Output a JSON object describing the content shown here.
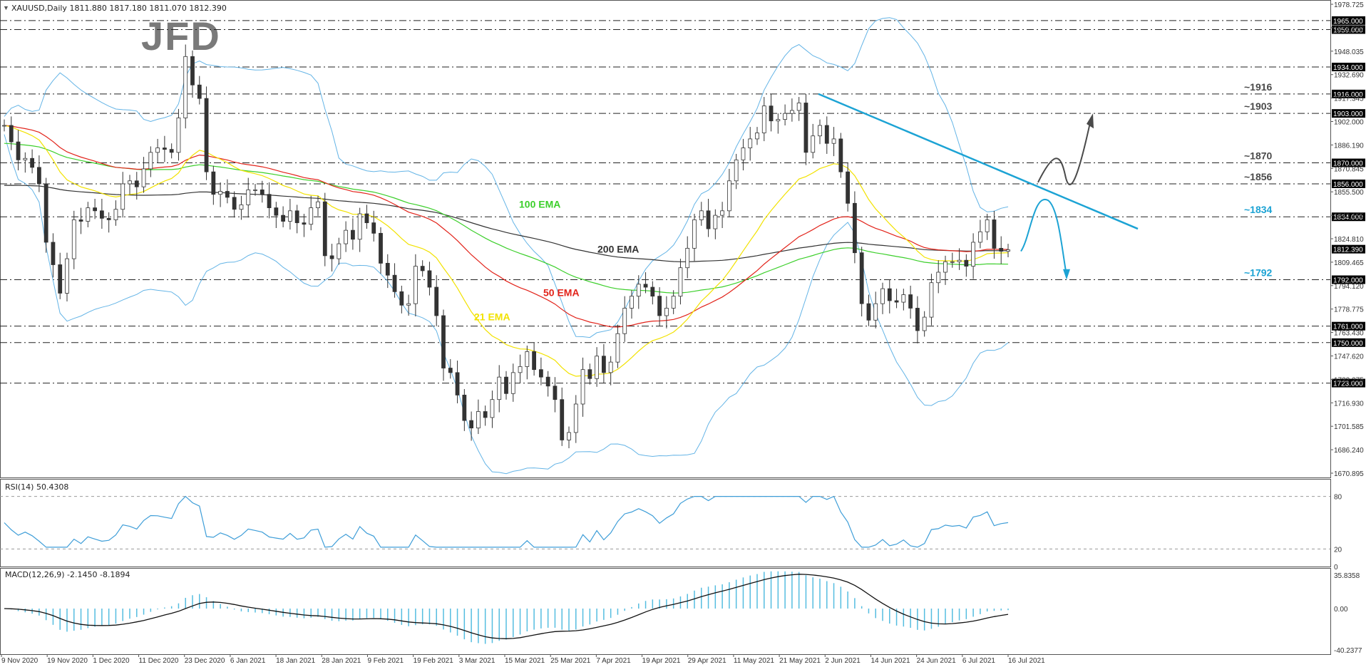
{
  "main_header": "XAUUSD,Daily  1811.880 1817.180 1811.070 1812.390",
  "rsi_header": "RSI(14) 50.4308",
  "macd_header": "MACD(12,26,9) -2.1450 -8.1894",
  "logo": "JFD",
  "colors": {
    "grid": "#222222",
    "up_candle": "#ffffff",
    "down_candle": "#333333",
    "ema21": "#f2e200",
    "ema50": "#e2231a",
    "ema100": "#3ccf2b",
    "ema200": "#333333",
    "bands": "#64b4e6",
    "trend": "#1ca3d4",
    "scenario_up": "#4a4a4a",
    "scenario_down": "#1ca3d4",
    "rsi": "#3f9ed8",
    "macd_hist": "#55bde0",
    "macd_signal": "#111111",
    "level_label": "#4a4a4a",
    "level_label_alt": "#1ca3d4"
  },
  "chart_data": {
    "type": "candlestick",
    "symbol": "XAUUSD",
    "timeframe": "Daily",
    "y_range": [
      1660,
      1978.725
    ],
    "y_ticks": [
      "1978.725",
      "1963.380",
      "1948.035",
      "1932.690",
      "1917.345",
      "1902.000",
      "1886.190",
      "1870.845",
      "1855.500",
      "1840.155",
      "1824.810",
      "1809.465",
      "1794.120",
      "1778.775",
      "1763.430",
      "1747.620",
      "1732.275",
      "1716.930",
      "1701.585",
      "1686.240",
      "1670.895"
    ],
    "current_price": "1812.390",
    "x_ticks": [
      "9 Nov 2020",
      "19 Nov 2020",
      "1 Dec 2020",
      "11 Dec 2020",
      "23 Dec 2020",
      "6 Jan 2021",
      "18 Jan 2021",
      "28 Jan 2021",
      "9 Feb 2021",
      "19 Feb 2021",
      "3 Mar 2021",
      "15 Mar 2021",
      "25 Mar 2021",
      "7 Apr 2021",
      "19 Apr 2021",
      "29 Apr 2021",
      "11 May 2021",
      "21 May 2021",
      "2 Jun 2021",
      "14 Jun 2021",
      "24 Jun 2021",
      "6 Jul 2021",
      "16 Jul 2021"
    ],
    "horizontal_levels": [
      {
        "value": 1965.0,
        "tag": "1965.000"
      },
      {
        "value": 1959.0,
        "tag": "1959.000"
      },
      {
        "value": 1934.0,
        "tag": "1934.000"
      },
      {
        "value": 1916.0,
        "tag": "1916.000",
        "label": "~1916"
      },
      {
        "value": 1903.0,
        "tag": "1903.000",
        "label": "~1903"
      },
      {
        "value": 1870.0,
        "tag": "1870.000",
        "label": "~1870"
      },
      {
        "value": 1856.0,
        "tag": "1856.000",
        "label": "~1856"
      },
      {
        "value": 1834.0,
        "tag": "1834.000",
        "label": "~1834",
        "alt": true
      },
      {
        "value": 1792.0,
        "tag": "1792.000",
        "label": "~1792",
        "alt": true
      },
      {
        "value": 1761.0,
        "tag": "1761.000"
      },
      {
        "value": 1750.0,
        "tag": "1750.000"
      },
      {
        "value": 1723.0,
        "tag": "1723.000"
      }
    ],
    "indicator_labels": [
      {
        "text": "100 EMA",
        "color": "ema100"
      },
      {
        "text": "200 EMA",
        "color": "ema200"
      },
      {
        "text": "50 EMA",
        "color": "ema50"
      },
      {
        "text": "21 EMA",
        "color": "ema21"
      }
    ],
    "price_path": [
      1895,
      1884,
      1872,
      1873,
      1867,
      1856,
      1817,
      1802,
      1783,
      1806,
      1832,
      1831,
      1840,
      1838,
      1833,
      1832,
      1839,
      1856,
      1858,
      1854,
      1866,
      1877,
      1880,
      1879,
      1877,
      1900,
      1941,
      1922,
      1913,
      1864,
      1849,
      1851,
      1847,
      1839,
      1842,
      1852,
      1852,
      1849,
      1840,
      1835,
      1831,
      1838,
      1830,
      1829,
      1840,
      1844,
      1808,
      1806,
      1816,
      1825,
      1819,
      1836,
      1830,
      1823,
      1803,
      1795,
      1784,
      1775,
      1776,
      1801,
      1798,
      1787,
      1768,
      1733,
      1730,
      1715,
      1698,
      1693,
      1704,
      1700,
      1712,
      1727,
      1716,
      1730,
      1734,
      1744,
      1732,
      1727,
      1721,
      1712,
      1685,
      1690,
      1709,
      1732,
      1726,
      1741,
      1730,
      1737,
      1756,
      1773,
      1781,
      1789,
      1787,
      1781,
      1768,
      1773,
      1781,
      1800,
      1813,
      1832,
      1838,
      1826,
      1835,
      1838,
      1858,
      1872,
      1880,
      1886,
      1890,
      1908,
      1898,
      1899,
      1903,
      1905,
      1910,
      1877,
      1888,
      1895,
      1883,
      1886,
      1864,
      1843,
      1810,
      1776,
      1765,
      1776,
      1786,
      1778,
      1777,
      1782,
      1773,
      1758,
      1767,
      1790,
      1797,
      1804,
      1804,
      1805,
      1801,
      1817,
      1824,
      1832,
      1813,
      1811,
      1812
    ],
    "rsi_ticks": [
      "80",
      "20",
      "0"
    ],
    "macd_ticks": [
      "35.8358",
      "0.00",
      "-40.2377"
    ]
  }
}
